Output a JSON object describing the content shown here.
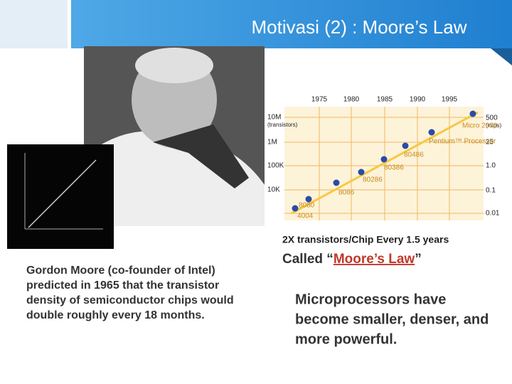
{
  "header": {
    "title": "Motivasi (2) : Moore’s Law"
  },
  "moore_chart": {
    "years": [
      "1975",
      "1980",
      "1985",
      "1990",
      "1995"
    ],
    "left_labels": [
      "10M",
      "(transistors)",
      "1M",
      "100K",
      "10K"
    ],
    "right_labels": [
      "500",
      "(mips)",
      "25",
      "1.0",
      "0.1",
      "0.01"
    ],
    "chips": [
      "4004",
      "8080",
      "8086",
      "80286",
      "80386",
      "80486",
      "Pentium™ Processor",
      "Micro 2000"
    ]
  },
  "caption": "2X transistors/Chip Every 1.5 years",
  "called": {
    "prefix": "Called “",
    "emphasis": "Moore’s Law",
    "suffix": "”"
  },
  "left_text": [
    "Gordon Moore (co-founder of Intel)",
    "predicted in 1965 that the transistor",
    "density of semiconductor chips would",
    "double roughly every 18 months."
  ],
  "right_text": [
    "Microprocessors have",
    "become smaller, denser, and",
    "more powerful."
  ]
}
